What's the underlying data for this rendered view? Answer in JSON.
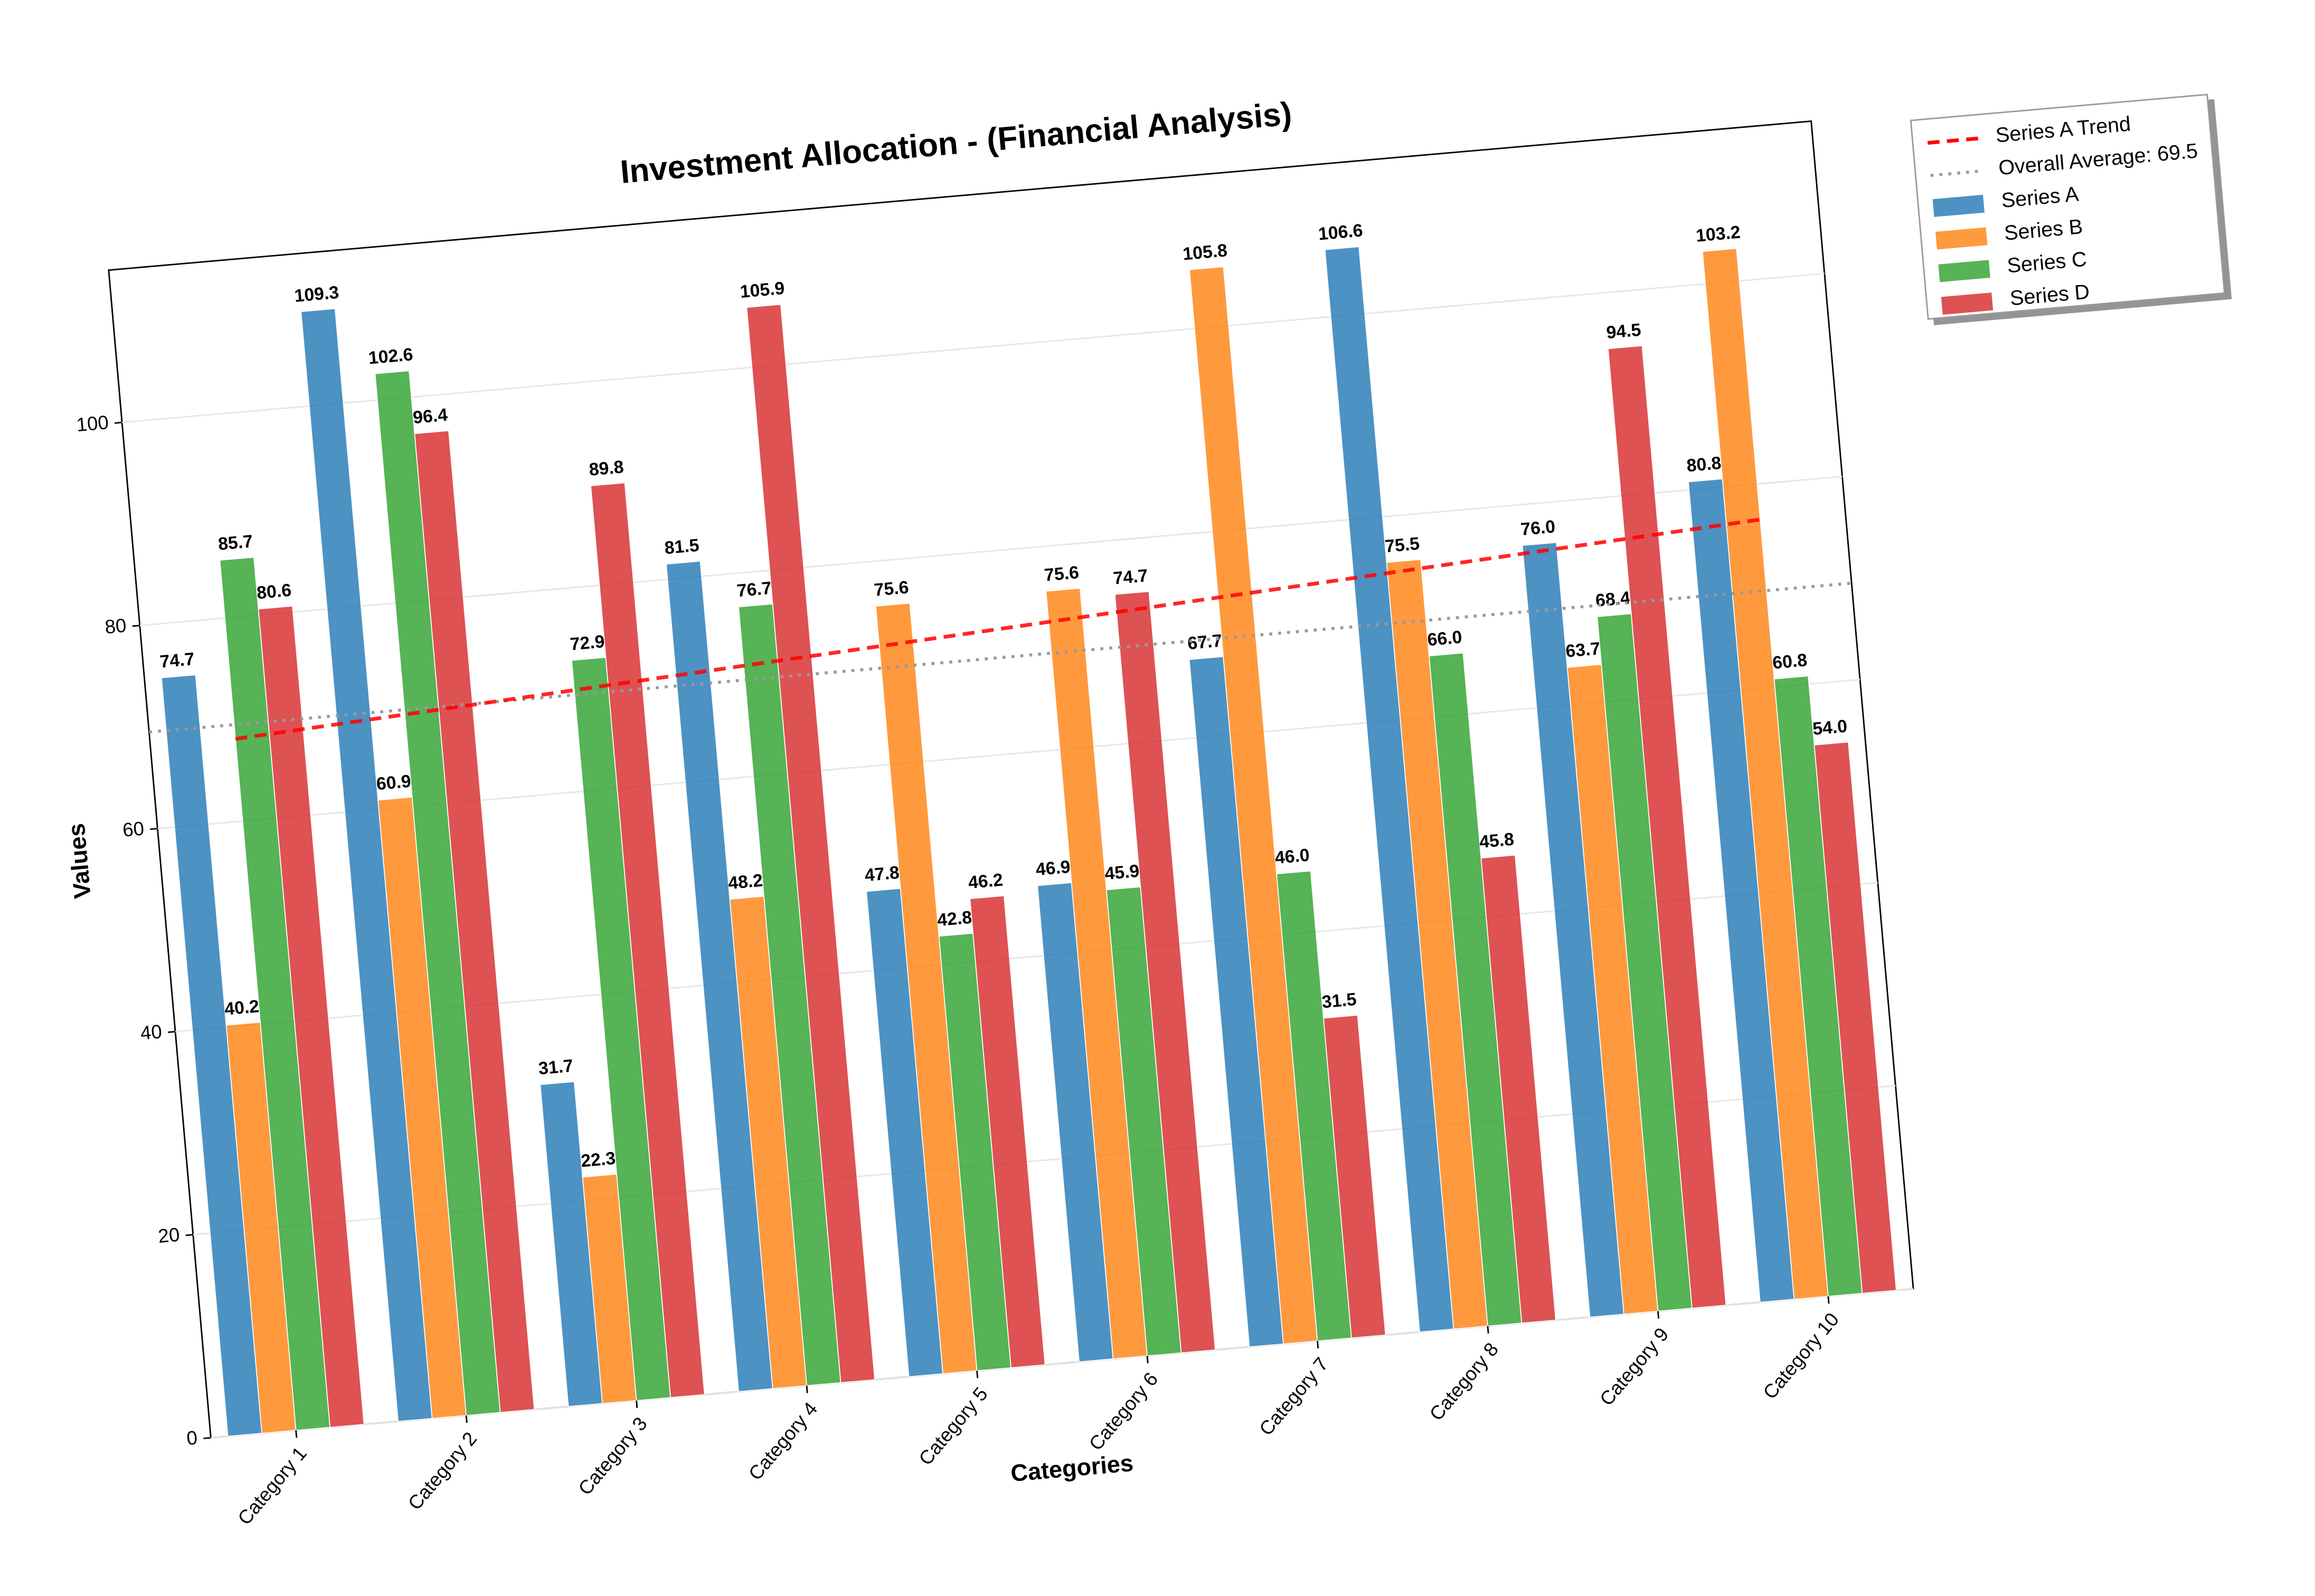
{
  "chart_data": {
    "type": "bar",
    "title": "Investment Allocation - (Financial Analysis)",
    "x_label": "Categories",
    "y_label": "Values",
    "categories": [
      "Category 1",
      "Category 2",
      "Category 3",
      "Category 4",
      "Category 5",
      "Category 6",
      "Category 7",
      "Category 8",
      "Category 9",
      "Category 10"
    ],
    "series": [
      {
        "name": "Series A",
        "color": "#1f77b4",
        "values": [
          74.7,
          109.3,
          31.7,
          81.5,
          47.8,
          46.9,
          67.7,
          106.6,
          76.0,
          80.8
        ],
        "value_labels": [
          "74.7",
          "109.3",
          "31.7",
          "81.5",
          "47.8",
          "46.9",
          "67.7",
          "106.6",
          "76.0",
          "80.8"
        ]
      },
      {
        "name": "Series B",
        "color": "#ff7f0e",
        "values": [
          40.2,
          60.9,
          22.3,
          48.2,
          75.6,
          75.6,
          105.8,
          75.5,
          63.7,
          103.2
        ],
        "value_labels": [
          "40.2",
          "60.9",
          "22.3",
          "48.2",
          "75.6",
          "75.6",
          "105.8",
          "75.5",
          "63.7",
          "103.2"
        ]
      },
      {
        "name": "Series C",
        "color": "#2ca02c",
        "values": [
          85.7,
          102.6,
          72.9,
          76.7,
          42.8,
          45.9,
          46.0,
          66.0,
          68.4,
          60.8
        ],
        "value_labels": [
          "85.7",
          "102.6",
          "72.9",
          "76.7",
          "42.8",
          "45.9",
          "46.0",
          "66.0",
          "68.4",
          "60.8"
        ]
      },
      {
        "name": "Series D",
        "color": "#d62728",
        "values": [
          80.6,
          96.4,
          89.8,
          105.9,
          46.2,
          74.7,
          31.5,
          45.8,
          94.5,
          54.0
        ],
        "value_labels": [
          "80.6",
          "96.4",
          "89.8",
          "105.9",
          "46.2",
          "74.7",
          "31.5",
          "45.8",
          "94.5",
          "54.0"
        ]
      }
    ],
    "trend": {
      "label": "Series A Trend",
      "series": 0,
      "color": "#ff0000"
    },
    "average_line": {
      "label": "Overall Average: 69.5",
      "value": 69.5,
      "color": "#999999"
    },
    "ylim": [
      0,
      115
    ],
    "yticks": [
      0,
      20,
      40,
      60,
      80,
      100
    ],
    "grid": true,
    "legend": "outside-upper-right"
  }
}
